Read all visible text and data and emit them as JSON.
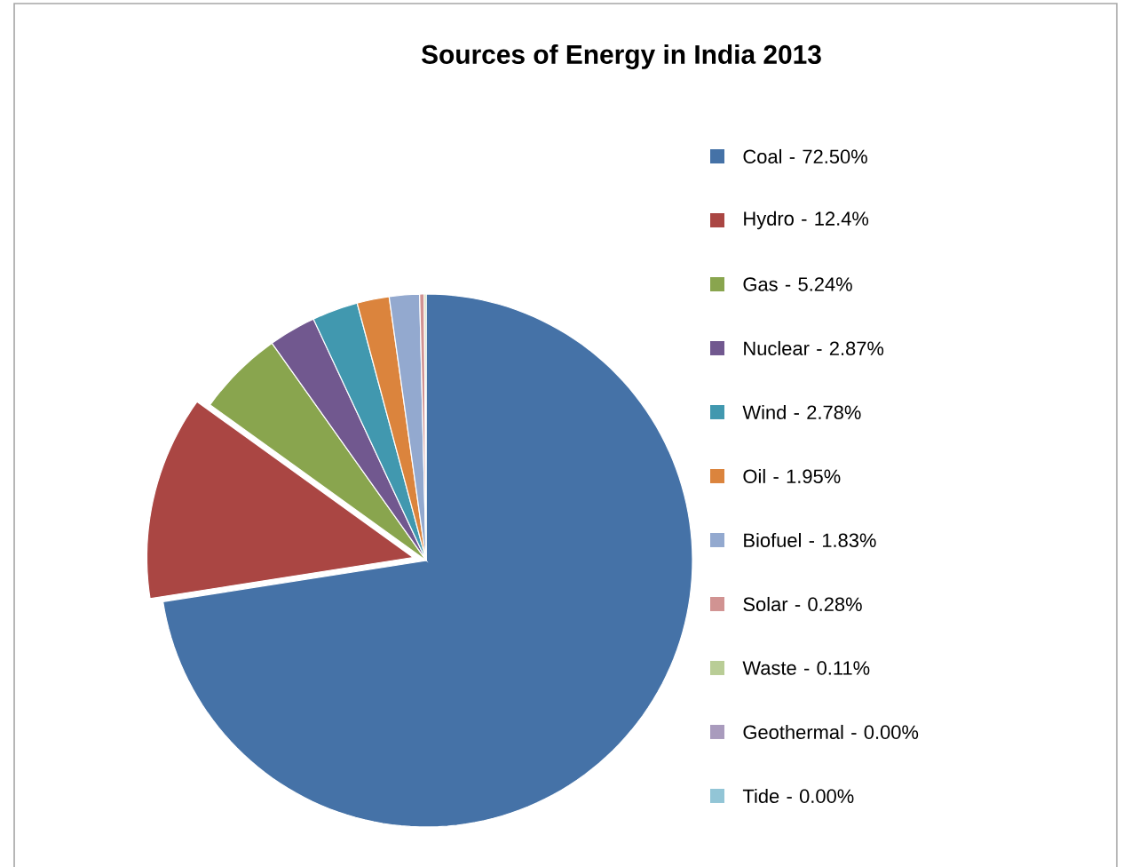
{
  "chart_data": {
    "type": "pie",
    "title": "Sources of Energy in India 2013",
    "categories": [
      "Coal - 72.50%",
      "Hydro - 12.4%",
      "Gas - 5.24%",
      "Nuclear - 2.87%",
      "Wind - 2.78%",
      "Oil - 1.95%",
      "Biofuel - 1.83%",
      "Solar - 0.28%",
      "Waste - 0.11%",
      "Geothermal - 0.00%",
      "Tide - 0.00%"
    ],
    "values": [
      72.5,
      12.4,
      5.24,
      2.87,
      2.78,
      1.95,
      1.83,
      0.28,
      0.11,
      0,
      0
    ],
    "colors": [
      "#4572a7",
      "#aa4643",
      "#89a54e",
      "#71588f",
      "#4198af",
      "#db843d",
      "#93a9cf",
      "#d19392",
      "#b9cd96",
      "#a99bbd",
      "#92c5d6"
    ],
    "legend": "right"
  }
}
